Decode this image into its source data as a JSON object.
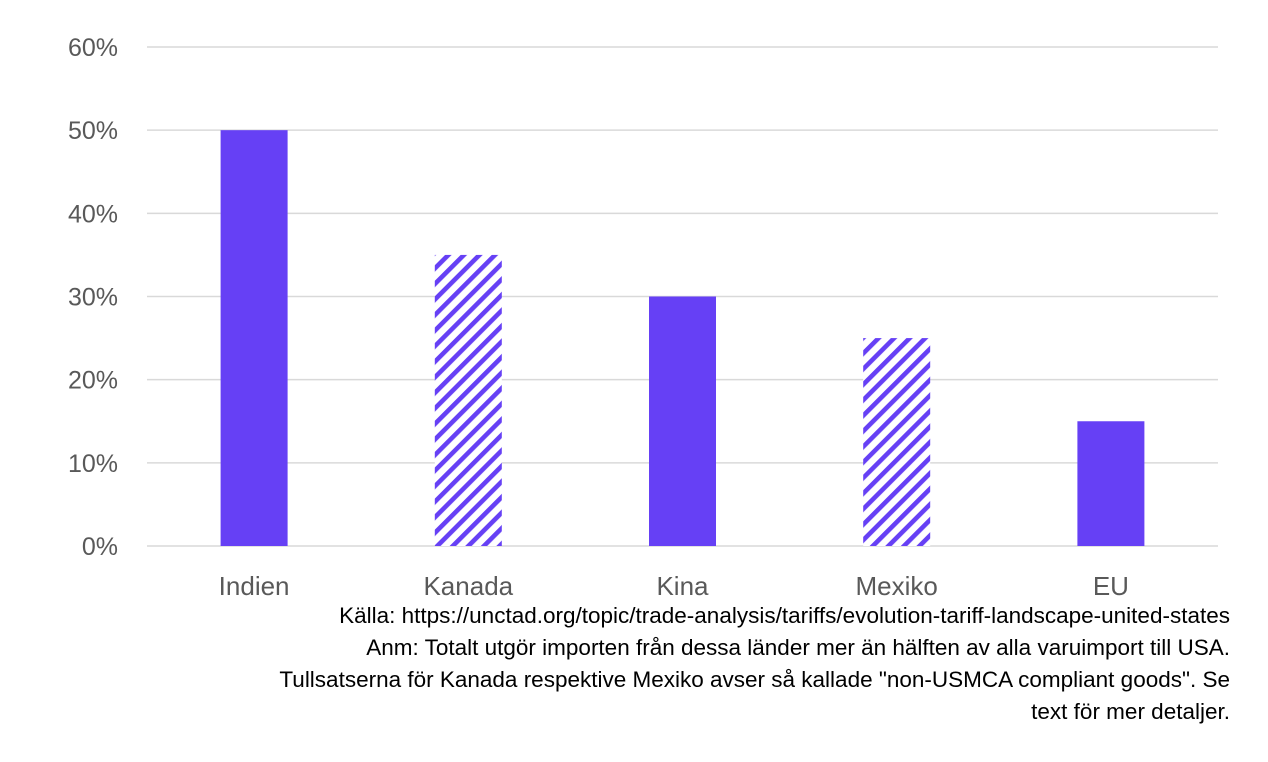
{
  "colors": {
    "bar": "#6640f5",
    "grid": "#d9d9d9",
    "text": "#595959",
    "note_text": "#000000"
  },
  "chart_data": {
    "type": "bar",
    "title": "",
    "xlabel": "",
    "ylabel": "",
    "categories": [
      "Indien",
      "Kanada",
      "Kina",
      "Mexiko",
      "EU"
    ],
    "values": [
      0.5,
      0.35,
      0.3,
      0.25,
      0.15
    ],
    "fill_style": [
      "solid",
      "hatched",
      "solid",
      "hatched",
      "solid"
    ],
    "ylim": [
      0,
      0.6
    ],
    "yticks": [
      0,
      0.1,
      0.2,
      0.3,
      0.4,
      0.5,
      0.6
    ],
    "ytick_labels": [
      "0%",
      "10%",
      "20%",
      "30%",
      "40%",
      "50%",
      "60%"
    ],
    "grid": true,
    "legend": "none"
  },
  "notes": {
    "source": "Källa: https://unctad.org/topic/trade-analysis/tariffs/evolution-tariff-landscape-united-states",
    "note_line1": "Anm: Totalt utgör importen från dessa länder mer än hälften av alla varuimport till USA.",
    "note_line2": "Tullsatserna för Kanada respektive Mexiko avser så kallade \"non-USMCA compliant goods\". Se",
    "note_line3": "text för mer detaljer."
  }
}
